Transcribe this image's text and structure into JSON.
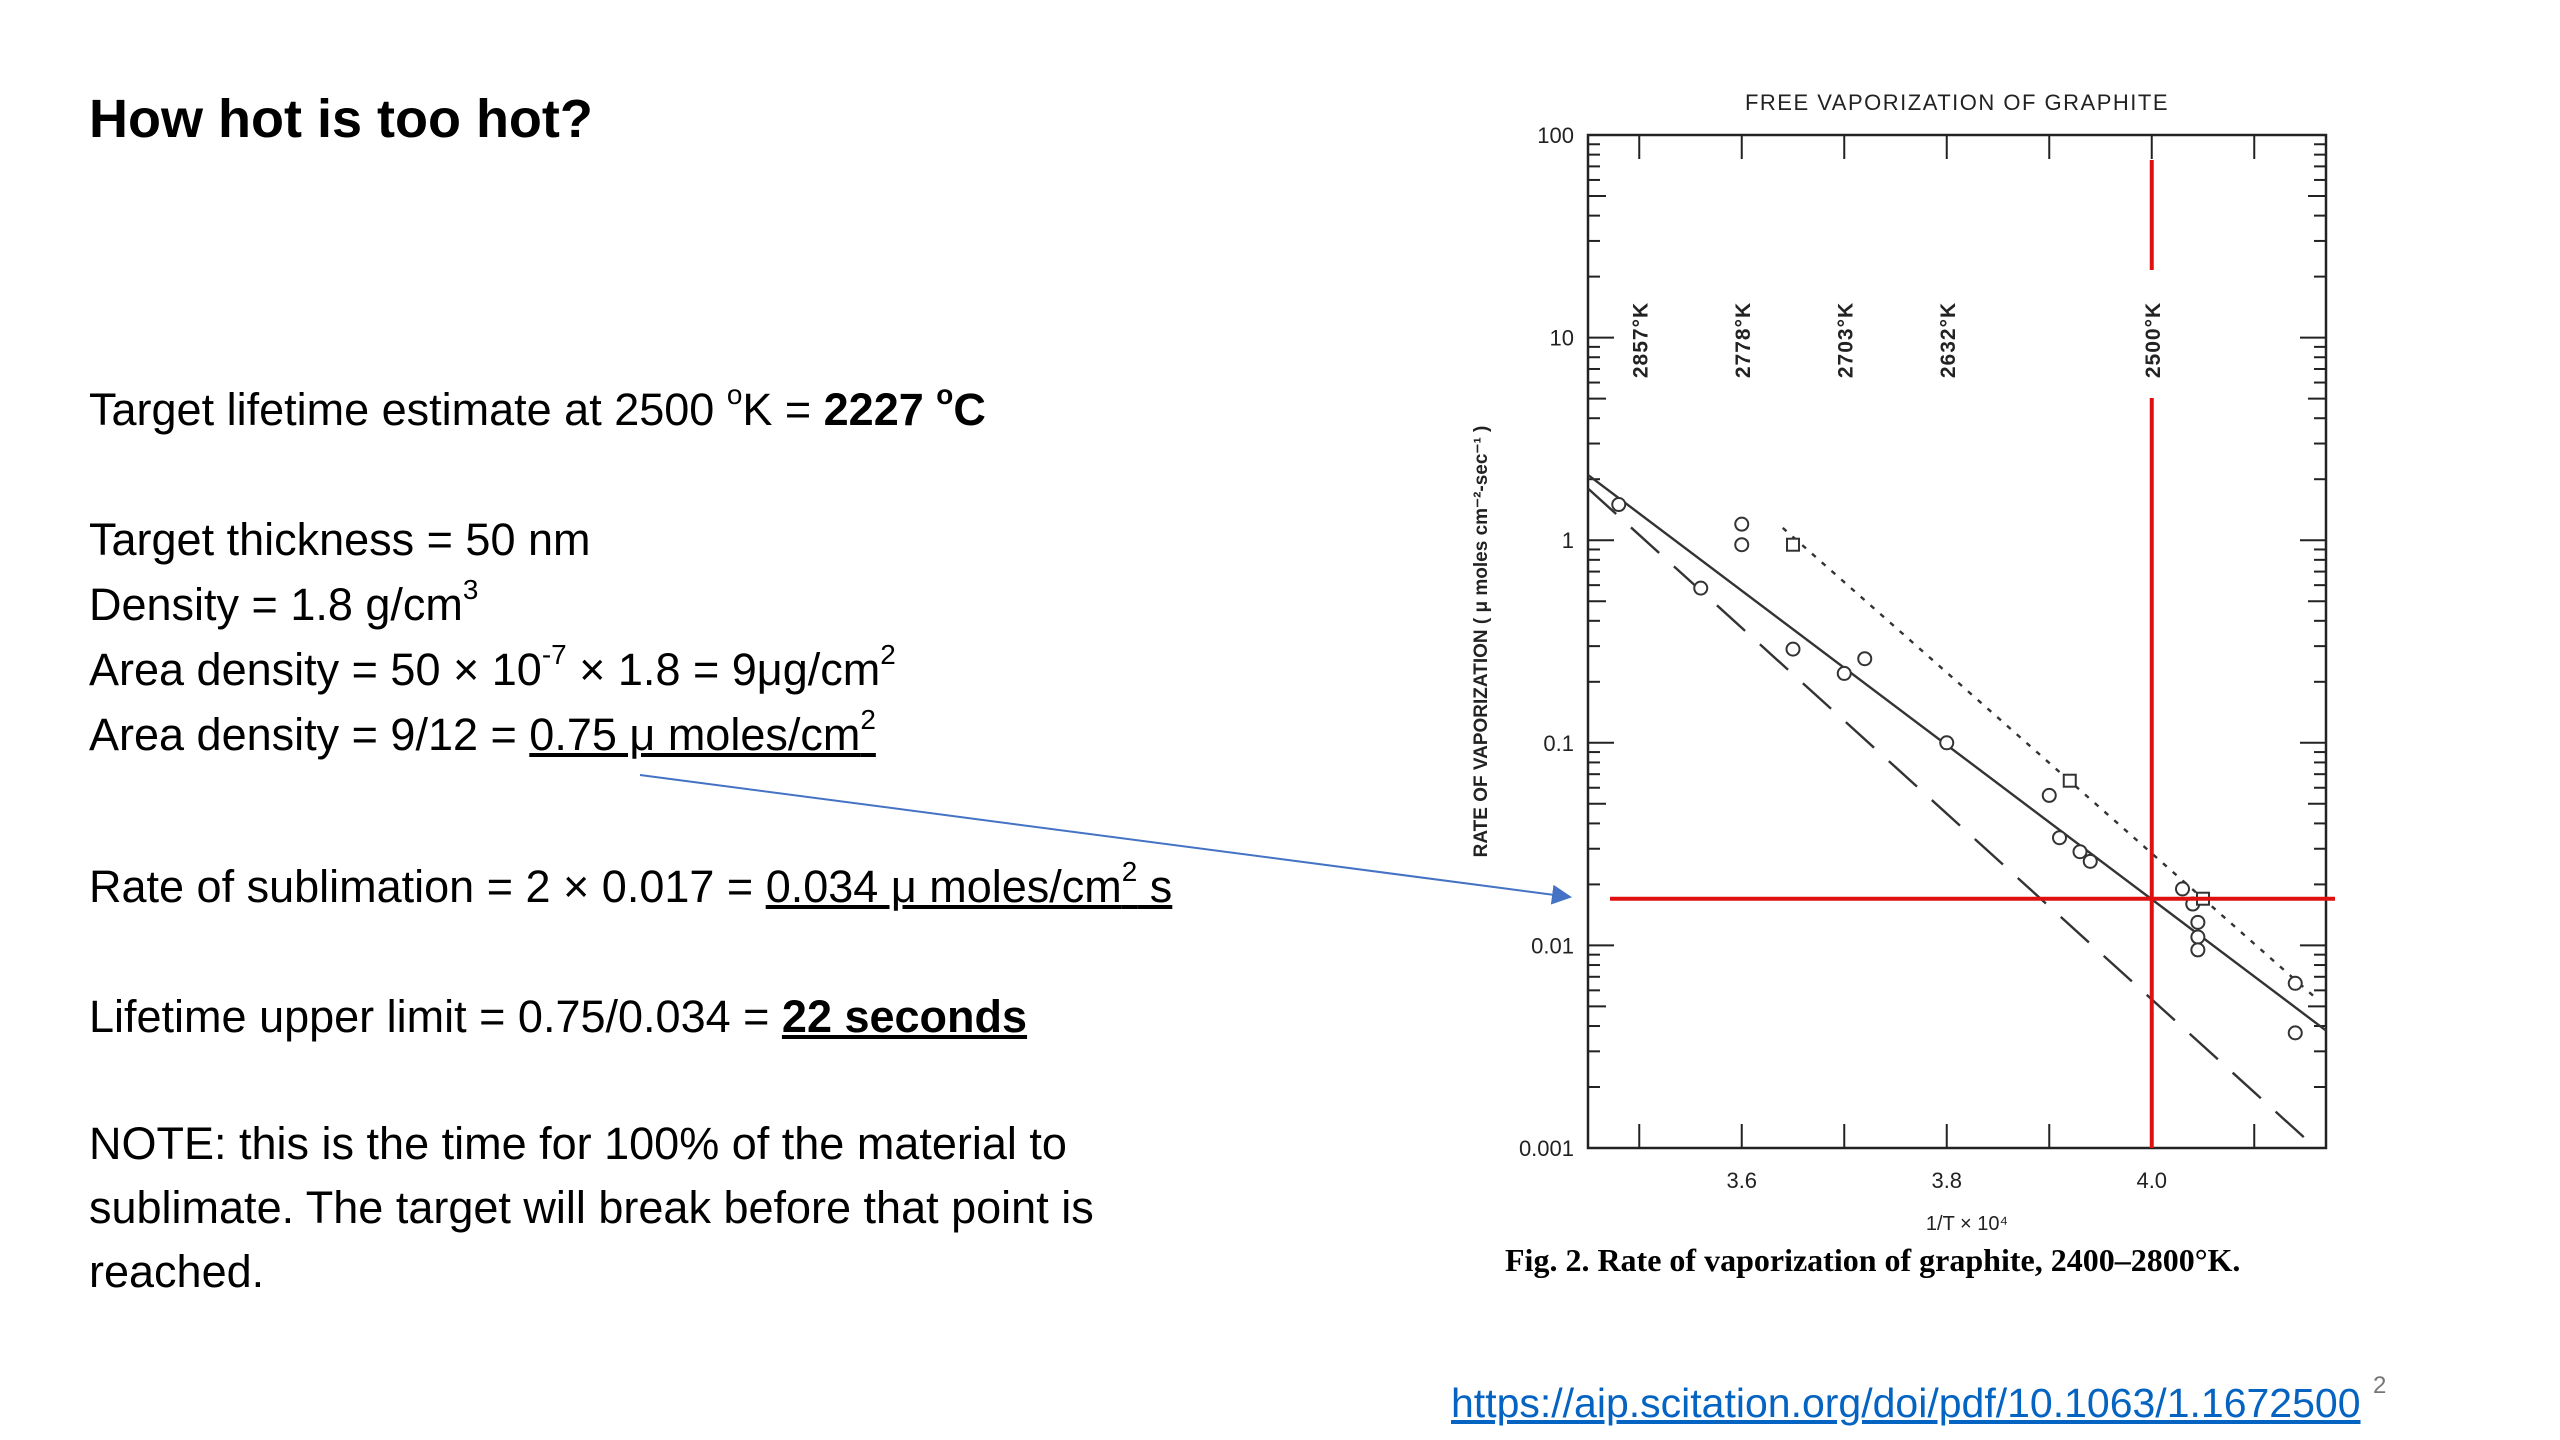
{
  "slide": {
    "title": "How hot is too hot?",
    "lifetime_est_prefix": "Target lifetime estimate at 2500 ",
    "lifetime_est_deg": "o",
    "lifetime_est_mid": "K = ",
    "lifetime_est_value": "2227 ",
    "lifetime_est_deg2": "o",
    "lifetime_est_unit": "C",
    "thickness": "Target thickness =  50 nm",
    "density_prefix": "Density = 1.8 g/cm",
    "density_exp": "3",
    "area_density_1_a": "Area density = 50 × 10",
    "area_density_1_exp": "-7",
    "area_density_1_b": " × 1.8 =  9μg/cm",
    "area_density_1_exp2": "2",
    "area_density_2_prefix": "Area density = 9/12 = ",
    "area_density_2_value": "0.75 μ moles/cm",
    "area_density_2_exp": "2",
    "rate_prefix": "Rate of sublimation = 2 × 0.017 = ",
    "rate_value_a": "0.034  μ moles/cm",
    "rate_value_exp": "2",
    "rate_value_b": " s",
    "lifetime_prefix": "Lifetime upper limit = 0.75/0.034 = ",
    "lifetime_value": "22 seconds",
    "note": "NOTE: this is the time for 100% of the material to sublimate. The target will break before that point is reached.",
    "link": "https://aip.scitation.org/doi/pdf/10.1063/1.1672500",
    "page_number": "2"
  },
  "colors": {
    "annotation_red": "#e01010",
    "arrow_blue": "#4472c4",
    "link_blue": "#0563c1"
  },
  "chart_data": {
    "type": "scatter",
    "title": "FREE VAPORIZATION OF GRAPHITE",
    "xlabel": "1/T × 10⁴",
    "ylabel": "RATE OF VAPORIZATION ( μ moles  cm⁻²-sec⁻¹ )",
    "caption": "Fig. 2. Rate of vaporization of graphite, 2400–2800°K.",
    "xlim": [
      3.45,
      4.17
    ],
    "ylim": [
      0.001,
      100
    ],
    "y_scale": "log",
    "x_ticks": [
      {
        "value": 3.6,
        "label": "3.6"
      },
      {
        "value": 3.8,
        "label": "3.8"
      },
      {
        "value": 4.0,
        "label": "4.0"
      }
    ],
    "y_ticks": [
      {
        "value": 100,
        "label": "100"
      },
      {
        "value": 10,
        "label": "10"
      },
      {
        "value": 1,
        "label": "1"
      },
      {
        "value": 0.1,
        "label": "0.1"
      },
      {
        "value": 0.01,
        "label": "0.01"
      },
      {
        "value": 0.001,
        "label": "0.001"
      }
    ],
    "temperature_labels": [
      {
        "x": 3.5,
        "label": "2857°K"
      },
      {
        "x": 3.6,
        "label": "2778°K"
      },
      {
        "x": 3.7,
        "label": "2703°K"
      },
      {
        "x": 3.8,
        "label": "2632°K"
      },
      {
        "x": 4.0,
        "label": "2500°K"
      }
    ],
    "series": [
      {
        "style": "solid",
        "line": [
          [
            3.45,
            2.1
          ],
          [
            4.17,
            0.0038
          ]
        ],
        "points": [
          [
            3.48,
            1.5
          ],
          [
            3.56,
            0.58
          ],
          [
            3.6,
            1.2
          ],
          [
            3.6,
            0.95
          ],
          [
            3.65,
            0.29
          ],
          [
            3.7,
            0.22
          ],
          [
            3.72,
            0.26
          ],
          [
            3.8,
            0.1
          ],
          [
            3.9,
            0.055
          ],
          [
            3.91,
            0.034
          ],
          [
            3.93,
            0.029
          ],
          [
            3.94,
            0.026
          ],
          [
            4.03,
            0.019
          ],
          [
            4.04,
            0.016
          ],
          [
            4.045,
            0.013
          ],
          [
            4.045,
            0.011
          ],
          [
            4.045,
            0.0095
          ],
          [
            4.14,
            0.0065
          ],
          [
            4.14,
            0.0037
          ]
        ]
      },
      {
        "style": "dashed",
        "line": [
          [
            3.45,
            1.8
          ],
          [
            4.16,
            0.001
          ]
        ],
        "points": []
      },
      {
        "style": "dotted",
        "line": [
          [
            3.64,
            1.15
          ],
          [
            4.16,
            0.0055
          ]
        ],
        "points": [
          [
            3.65,
            0.95
          ],
          [
            3.92,
            0.065
          ],
          [
            4.05,
            0.017
          ]
        ]
      }
    ],
    "reference_lines": [
      {
        "orientation": "vertical",
        "x": 4.0
      },
      {
        "orientation": "horizontal",
        "y": 0.017
      }
    ]
  }
}
